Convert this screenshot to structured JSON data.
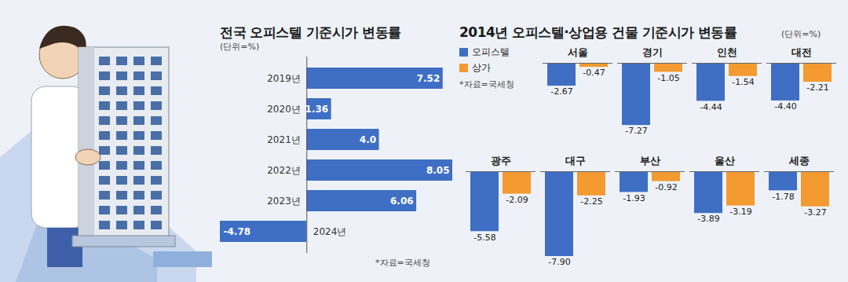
{
  "chart_data": [
    {
      "type": "bar",
      "title": "전국 오피스텔 기준시가 변동률",
      "subtitle": "(단위=%)",
      "source": "*자료=국세청",
      "orientation": "horizontal",
      "categories": [
        "2019년",
        "2020년",
        "2021년",
        "2022년",
        "2023년",
        "2024년"
      ],
      "values": [
        7.52,
        1.36,
        4.0,
        8.05,
        6.06,
        -4.78
      ],
      "value_labels": [
        "7.52",
        "1.36",
        "4.0",
        "8.05",
        "6.06",
        "-4.78"
      ],
      "color": "#3f6fc4",
      "xlim": [
        -4.78,
        8.05
      ],
      "data_labels": true,
      "tick_labels": "y"
    },
    {
      "type": "bar",
      "title": "2014년 오피스텔·상업용 건물 기준시가 변동률",
      "subtitle": "(단위=%)",
      "source": "*자료=국세청",
      "categories": [
        "서울",
        "경기",
        "인천",
        "대전",
        "광주",
        "대구",
        "부산",
        "울산",
        "세종"
      ],
      "series": [
        {
          "name": "오피스텔",
          "color": "#3f6fc4",
          "values": [
            -2.67,
            -7.27,
            -4.44,
            -4.4,
            -5.58,
            -7.9,
            -1.93,
            -3.89,
            -1.78
          ],
          "value_labels": [
            "-2.67",
            "-7.27",
            "-4.44",
            "-4.40",
            "-5.58",
            "-7.90",
            "-1.93",
            "-3.89",
            "-1.78"
          ]
        },
        {
          "name": "상가",
          "color": "#f39a30",
          "values": [
            -0.47,
            -1.05,
            -1.54,
            -2.21,
            -2.09,
            -2.25,
            -0.92,
            -3.19,
            -3.27
          ],
          "value_labels": [
            "-0.47",
            "-1.05",
            "-1.54",
            "-2.21",
            "-2.09",
            "-2.25",
            "-0.92",
            "-3.19",
            "-3.27"
          ]
        }
      ],
      "ylim": [
        -7.9,
        0
      ],
      "legend": "top-left",
      "data_labels": true,
      "tick_labels": false
    }
  ]
}
